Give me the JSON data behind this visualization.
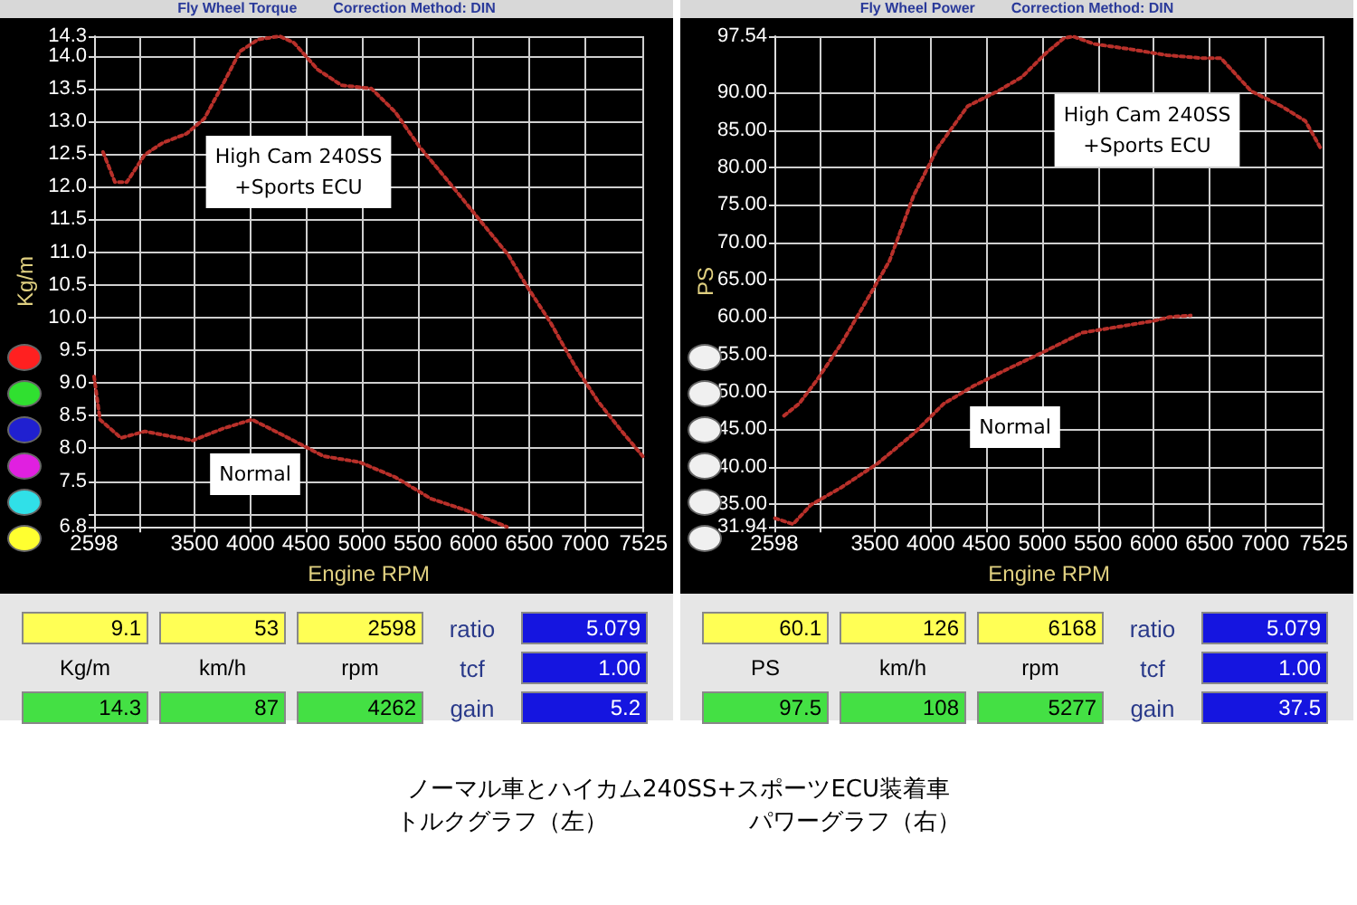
{
  "chart_data": [
    {
      "type": "line",
      "title": "Fly Wheel Torque",
      "subtitle": "Correction Method: DIN",
      "xlabel": "Engine RPM",
      "ylabel": "Kg/m",
      "xlim": [
        2598,
        7525
      ],
      "xticks": [
        2598,
        {
          "value": 3000,
          "label": null
        },
        3500,
        {
          "value": 4000,
          "label": "4000"
        },
        4500,
        {
          "value": 5000,
          "label": "5000"
        },
        5500,
        {
          "value": 6000,
          "label": "6000"
        },
        6500,
        {
          "value": 7000,
          "label": "7000"
        },
        7525
      ],
      "ylim": [
        6.8,
        14.3
      ],
      "yticks": [
        6.8,
        {
          "value": 7,
          "label": null
        },
        7.5,
        {
          "value": 8,
          "label": "8.0"
        },
        8.5,
        {
          "value": 9,
          "label": "9.0"
        },
        9.5,
        {
          "value": 10,
          "label": "10.0"
        },
        10.5,
        {
          "value": 11,
          "label": "11.0"
        },
        11.5,
        {
          "value": 12,
          "label": "12.0"
        },
        12.5,
        {
          "value": 13,
          "label": "13.0"
        },
        13.5,
        {
          "value": 14,
          "label": "14.0"
        },
        14.3
      ],
      "grid": true,
      "line_style": "dotted",
      "series": [
        {
          "color": "#b8302a",
          "x": [
            2678,
            2785,
            2892,
            3053,
            3213,
            3427,
            3587,
            3749,
            3908,
            4069,
            4262,
            4390,
            4603,
            4817,
            5085,
            5299,
            5512,
            5780,
            6047,
            6315,
            6475,
            6689,
            6903,
            7117,
            7331,
            7518
          ],
          "values": [
            12.53,
            12.07,
            12.07,
            12.49,
            12.67,
            12.81,
            13.04,
            13.55,
            14.07,
            14.25,
            14.3,
            14.2,
            13.79,
            13.55,
            13.5,
            13.14,
            12.62,
            12.07,
            11.51,
            10.95,
            10.49,
            9.93,
            9.28,
            8.72,
            8.26,
            7.88
          ]
        },
        {
          "color": "#b8302a",
          "x": [
            2598,
            2651,
            2839,
            3053,
            3481,
            3749,
            4015,
            4283,
            4657,
            4978,
            5299,
            5620,
            5940,
            6300
          ],
          "values": [
            9.1,
            8.44,
            8.16,
            8.26,
            8.12,
            8.3,
            8.44,
            8.21,
            7.88,
            7.79,
            7.56,
            7.23,
            7.05,
            6.8
          ]
        }
      ],
      "annotations": [
        "High Cam 240SS\n+Sports ECU",
        "Normal",
        "9.1",
        "53",
        "2598",
        "ratio",
        "5.079",
        "Kg/m",
        "km/h",
        "rpm",
        "tcf",
        "1.00",
        "14.3",
        "87",
        "4262",
        "gain",
        "5.2",
        "ノーマル車とハイカム240SS+スポーツECU装着車",
        "トルクグラフ（左）　　　　　　パワーグラフ（右）"
      ]
    },
    {
      "type": "line",
      "title": "Fly Wheel Power",
      "subtitle": "Correction Method: DIN",
      "xlabel": "Engine RPM",
      "ylabel": "PS",
      "xlim": [
        2598,
        7525
      ],
      "xticks": [
        2598,
        {
          "value": 3000,
          "label": null
        },
        3500,
        {
          "value": 4000,
          "label": "4000"
        },
        4500,
        {
          "value": 5000,
          "label": "5000"
        },
        5500,
        {
          "value": 6000,
          "label": "6000"
        },
        6500,
        {
          "value": 7000,
          "label": "7000"
        },
        7525
      ],
      "ylim": [
        31.94,
        97.54
      ],
      "yticks": [
        31.94,
        {
          "value": 35,
          "label": "35.00"
        },
        {
          "value": 40,
          "label": "40.00"
        },
        {
          "value": 45,
          "label": "45.00"
        },
        {
          "value": 50,
          "label": "50.00"
        },
        {
          "value": 55,
          "label": "55.00"
        },
        {
          "value": 60,
          "label": "60.00"
        },
        {
          "value": 65,
          "label": "65.00"
        },
        {
          "value": 70,
          "label": "70.00"
        },
        {
          "value": 75,
          "label": "75.00"
        },
        {
          "value": 80,
          "label": "80.00"
        },
        {
          "value": 85,
          "label": "85.00"
        },
        {
          "value": 90,
          "label": "90.00"
        },
        97.54
      ],
      "grid": true,
      "line_style": "dotted",
      "series": [
        {
          "color": "#b8302a",
          "x": [
            2684,
            2819,
            2981,
            3197,
            3413,
            3630,
            3846,
            4062,
            4332,
            4603,
            4819,
            5035,
            5197,
            5277,
            5467,
            5791,
            6116,
            6440,
            6603,
            6873,
            7143,
            7360,
            7495
          ],
          "values": [
            46.8,
            48.4,
            51.6,
            56.4,
            61.9,
            67.5,
            76.2,
            82.6,
            88.2,
            90.2,
            92.1,
            95.3,
            97.3,
            97.5,
            96.5,
            95.8,
            95,
            94.6,
            94.6,
            90.2,
            88.2,
            86.2,
            82.6
          ]
        },
        {
          "color": "#b8302a",
          "x": [
            2603,
            2765,
            2927,
            3197,
            3522,
            3846,
            4116,
            4386,
            4711,
            5035,
            5359,
            5683,
            6008,
            6143,
            6332
          ],
          "values": [
            33.1,
            32.3,
            34.9,
            37.2,
            40.4,
            44.4,
            48.4,
            50.8,
            53.2,
            55.5,
            57.9,
            58.7,
            59.5,
            60,
            60.2
          ]
        }
      ],
      "annotations": [
        "High Cam 240SS\n+Sports ECU",
        "Normal",
        "60.1",
        "126",
        "6168",
        "ratio",
        "5.079",
        "PS",
        "km/h",
        "rpm",
        "tcf",
        "1.00",
        "97.5",
        "108",
        "5277",
        "gain",
        "37.5"
      ]
    }
  ]
}
